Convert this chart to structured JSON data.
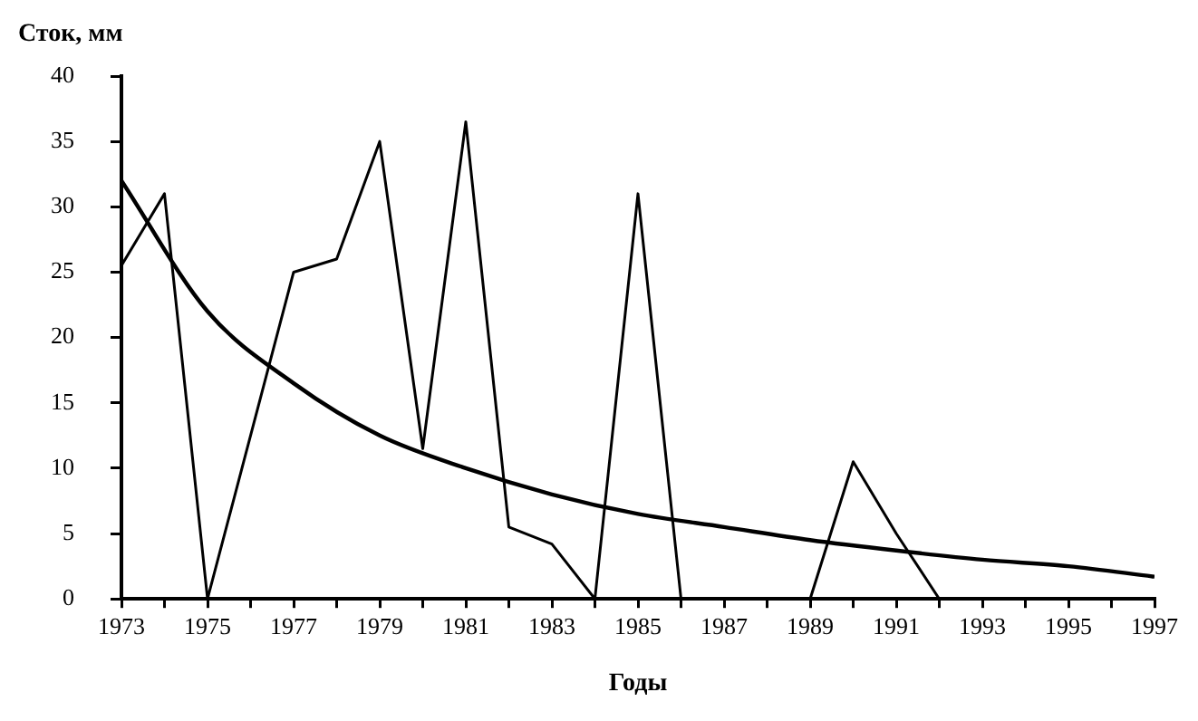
{
  "chart_data": {
    "type": "line",
    "xlabel": "Годы",
    "ylabel": "Сток, мм",
    "x": [
      1973,
      1974,
      1975,
      1976,
      1977,
      1978,
      1979,
      1980,
      1981,
      1982,
      1983,
      1984,
      1985,
      1986,
      1987,
      1988,
      1989,
      1990,
      1991,
      1992,
      1993,
      1994,
      1995,
      1996,
      1997
    ],
    "series": [
      {
        "color": "#000000",
        "values": [
          25.5,
          31,
          0,
          12.5,
          25,
          26,
          35,
          11.5,
          36.5,
          5.5,
          4.2,
          0,
          31,
          0,
          0,
          0,
          0,
          10.5,
          5,
          0,
          0,
          0,
          0,
          0,
          0
        ]
      },
      {
        "type": "line",
        "color": "#000000",
        "x": [
          1973,
          1975,
          1977,
          1979,
          1981,
          1983,
          1985,
          1987,
          1989,
          1991,
          1993,
          1995,
          1997
        ],
        "values": [
          32,
          22,
          16.5,
          12.5,
          10,
          8,
          6.5,
          5.5,
          4.5,
          3.7,
          3,
          2.5,
          1.7
        ]
      }
    ],
    "xlim": [
      1973,
      1997
    ],
    "xticks": [
      1973,
      {
        "value": 1974,
        "label": null
      },
      1975,
      {
        "value": 1976,
        "label": null
      },
      1977,
      {
        "value": 1978,
        "label": null
      },
      1979,
      {
        "value": 1980,
        "label": null
      },
      1981,
      {
        "value": 1982,
        "label": null
      },
      1983,
      {
        "value": 1984,
        "label": null
      },
      1985,
      {
        "value": 1986,
        "label": null
      },
      1987,
      {
        "value": 1988,
        "label": null
      },
      1989,
      {
        "value": 1990,
        "label": null
      },
      1991,
      {
        "value": 1992,
        "label": null
      },
      1993,
      {
        "value": 1994,
        "label": null
      },
      1995,
      {
        "value": 1996,
        "label": null
      },
      1997
    ],
    "ylim": [
      0,
      40
    ],
    "yticks": [
      0,
      5,
      10,
      15,
      20,
      25,
      30,
      35,
      40
    ],
    "grid": false,
    "legend": false,
    "marker": "none",
    "line_style": "solid"
  }
}
